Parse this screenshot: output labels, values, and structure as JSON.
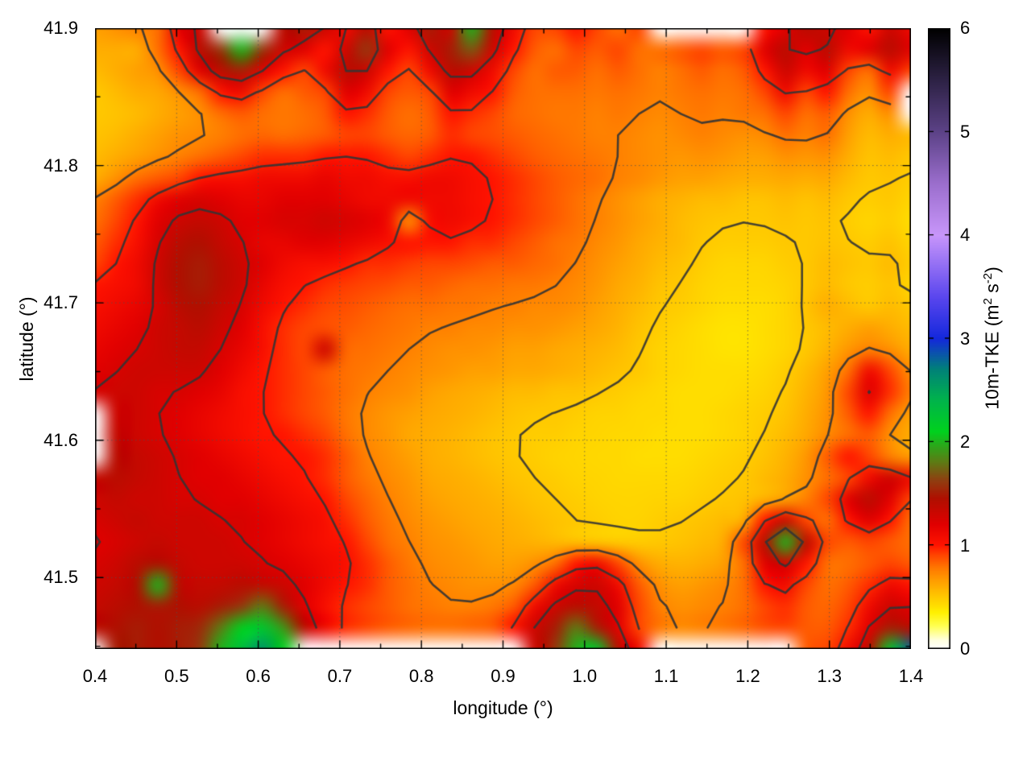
{
  "chart_data": {
    "type": "heatmap",
    "title": "",
    "xlabel": "longitude (°)",
    "ylabel": "latitude (°)",
    "colorbar_label": {
      "prefix": "10m-TKE (m",
      "sup1": "2",
      "mid": " s",
      "sup2": "-2",
      "suffix": ")"
    },
    "x_range": [
      0.4,
      1.4
    ],
    "y_range": [
      41.448,
      41.9
    ],
    "z_range": [
      0,
      6
    ],
    "x_tick_labels": [
      "0.4",
      "0.5",
      "0.6",
      "0.7",
      "0.8",
      "0.9",
      "1.0",
      "1.1",
      "1.2",
      "1.3",
      "1.4"
    ],
    "x_minor_ticks": [
      0.45,
      0.55,
      0.65,
      0.75,
      0.85,
      0.95,
      1.05,
      1.15,
      1.25,
      1.35
    ],
    "y_tick_labels": [
      "41.5",
      "41.6",
      "41.7",
      "41.8",
      "41.9"
    ],
    "y_minor_ticks": [
      41.45,
      41.55,
      41.65,
      41.75,
      41.85
    ],
    "x_grid": [
      0.5,
      0.6,
      0.7,
      0.8,
      0.9,
      1.0,
      1.1,
      1.2,
      1.3
    ],
    "y_grid": [
      41.5,
      41.6,
      41.7,
      41.8
    ],
    "cb_tick_labels": [
      "0",
      "1",
      "2",
      "3",
      "4",
      "5",
      "6"
    ],
    "grid": true,
    "legend_position": "colorbar-right",
    "contour_levels": [
      0.5,
      0.75,
      1.0,
      1.25
    ],
    "contour_color": "#343434",
    "palette": [
      [
        0.0,
        "#ffffff"
      ],
      [
        0.08,
        "#ffffe0"
      ],
      [
        0.22,
        "#ffff50"
      ],
      [
        0.35,
        "#fff000"
      ],
      [
        0.5,
        "#ffc800"
      ],
      [
        0.65,
        "#ffa000"
      ],
      [
        0.78,
        "#ff7800"
      ],
      [
        0.9,
        "#ff4600"
      ],
      [
        1.0,
        "#ff1400"
      ],
      [
        1.2,
        "#e10000"
      ],
      [
        1.45,
        "#b00f00"
      ],
      [
        1.62,
        "#913c10"
      ],
      [
        1.8,
        "#5f7a14"
      ],
      [
        1.95,
        "#2fa41a"
      ],
      [
        2.1,
        "#00d21e"
      ],
      [
        2.4,
        "#00b44b"
      ],
      [
        2.7,
        "#008278"
      ],
      [
        3.0,
        "#1428dc"
      ],
      [
        3.4,
        "#5a46ee"
      ],
      [
        4.0,
        "#c896fa"
      ],
      [
        4.5,
        "#9b6ecd"
      ],
      [
        5.0,
        "#5c4287"
      ],
      [
        5.5,
        "#2d2245"
      ],
      [
        6.0,
        "#000000"
      ]
    ],
    "values_note": "10m TKE (m2/s2); rows top(lat 41.9) to bottom(lat 41.448), cols lon 0.4 to 1.4; 0 = no data (white)",
    "values": [
      [
        0.65,
        0.7,
        0.75,
        0.8,
        1.2,
        1.3,
        0,
        0,
        0,
        1.4,
        1.5,
        1.3,
        1.1,
        1.4,
        1.0,
        1.2,
        1.5,
        1.3,
        2.0,
        1.4,
        1.1,
        0.9,
        0.9,
        1.0,
        0.9,
        0.8,
        0.9,
        0,
        0,
        0,
        0,
        0,
        1.0,
        1.2,
        1.4,
        1.3,
        1.2,
        1.0,
        1.3,
        1.1
      ],
      [
        0.6,
        0.6,
        0.6,
        0.8,
        1.0,
        1.4,
        1.6,
        2.0,
        1.6,
        1.3,
        1.2,
        1.0,
        1.3,
        1.6,
        1.2,
        1.0,
        1.3,
        1.5,
        1.7,
        1.3,
        1.0,
        0.85,
        0.8,
        0.9,
        0.85,
        0.9,
        0.8,
        0.8,
        0.85,
        0.9,
        0.85,
        0.9,
        1.2,
        1.4,
        1.2,
        1.4,
        1.1,
        1.2,
        1.4,
        1.2
      ],
      [
        0.55,
        0.6,
        0.65,
        0.7,
        0.9,
        1.2,
        1.4,
        1.5,
        1.2,
        1.0,
        0.9,
        1.1,
        1.4,
        1.3,
        1.0,
        0.9,
        1.1,
        1.4,
        1.3,
        1.1,
        0.9,
        0.8,
        0.85,
        0.85,
        0.8,
        0.85,
        0.8,
        0.75,
        0.8,
        0.85,
        0.8,
        0.85,
        1.0,
        1.3,
        1.1,
        1.2,
        0.9,
        0.8,
        1.1,
        0.9
      ],
      [
        0.5,
        0.55,
        0.6,
        0.62,
        0.7,
        0.8,
        1.0,
        1.1,
        0.9,
        0.8,
        0.85,
        0.9,
        1.2,
        1.1,
        0.9,
        0.85,
        0.9,
        1.2,
        1.1,
        1.0,
        0.85,
        0.8,
        0.8,
        0.8,
        0.78,
        0.8,
        0.78,
        0.75,
        0.78,
        0.8,
        0.78,
        0.8,
        0.9,
        1.1,
        0.9,
        1.0,
        0.8,
        0.7,
        0.9,
        0
      ],
      [
        0.5,
        0.52,
        0.55,
        0.6,
        0.65,
        0.7,
        0.8,
        0.85,
        0.8,
        0.78,
        0.8,
        0.85,
        1.0,
        0.95,
        0.85,
        0.8,
        0.85,
        1.0,
        0.95,
        0.9,
        0.82,
        0.8,
        0.78,
        0.78,
        0.75,
        0.78,
        0.75,
        0.72,
        0.75,
        0.78,
        0.75,
        0.78,
        0.8,
        0.9,
        0.8,
        0.85,
        0.7,
        0.6,
        0.7,
        0
      ],
      [
        0.52,
        0.55,
        0.6,
        0.65,
        0.7,
        0.72,
        0.75,
        0.8,
        0.82,
        0.8,
        0.82,
        0.85,
        0.9,
        0.9,
        0.85,
        0.82,
        0.85,
        0.95,
        0.9,
        0.88,
        0.85,
        0.82,
        0.8,
        0.78,
        0.75,
        0.75,
        0.72,
        0.7,
        0.72,
        0.75,
        0.72,
        0.7,
        0.72,
        0.8,
        0.75,
        0.8,
        0.65,
        0.55,
        0.6,
        0.55
      ],
      [
        0.55,
        0.6,
        0.65,
        0.7,
        0.75,
        0.8,
        0.85,
        0.9,
        0.95,
        0.95,
        0.95,
        1.0,
        1.0,
        1.0,
        0.95,
        0.9,
        0.95,
        1.0,
        1.0,
        0.95,
        0.9,
        0.85,
        0.82,
        0.8,
        0.78,
        0.75,
        0.72,
        0.7,
        0.68,
        0.7,
        0.68,
        0.65,
        0.65,
        0.7,
        0.68,
        0.7,
        0.6,
        0.52,
        0.55,
        0.5
      ],
      [
        0.6,
        0.7,
        0.8,
        0.85,
        0.9,
        1.0,
        1.05,
        1.05,
        1.1,
        1.1,
        1.1,
        1.15,
        1.1,
        1.1,
        1.05,
        1.05,
        1.1,
        1.1,
        1.05,
        1.0,
        0.95,
        0.9,
        0.85,
        0.82,
        0.8,
        0.75,
        0.72,
        0.68,
        0.65,
        0.65,
        0.62,
        0.6,
        0.6,
        0.62,
        0.6,
        0.62,
        0.55,
        0.5,
        0.52,
        0.48
      ],
      [
        0.75,
        0.85,
        0.95,
        1.1,
        1.2,
        1.25,
        1.2,
        1.15,
        1.15,
        1.2,
        1.2,
        1.2,
        1.15,
        1.1,
        1.1,
        1.1,
        1.1,
        1.1,
        1.05,
        1.0,
        0.95,
        0.9,
        0.85,
        0.8,
        0.75,
        0.7,
        0.65,
        0.6,
        0.58,
        0.55,
        0.55,
        0.52,
        0.52,
        0.55,
        0.52,
        0.55,
        0.5,
        0.48,
        0.5,
        0.45
      ],
      [
        0.8,
        0.9,
        1.0,
        1.2,
        1.3,
        1.35,
        1.3,
        1.2,
        1.2,
        1.25,
        1.25,
        1.3,
        1.25,
        1.2,
        1.1,
        0.7,
        1.05,
        1.1,
        1.05,
        1.0,
        0.95,
        0.9,
        0.85,
        0.8,
        0.75,
        0.7,
        0.65,
        0.6,
        0.55,
        0.52,
        0.5,
        0.5,
        0.5,
        0.52,
        0.5,
        0.52,
        0.48,
        0.45,
        0.48,
        0.42
      ],
      [
        0.85,
        0.95,
        1.05,
        1.25,
        1.4,
        1.45,
        1.35,
        1.25,
        1.15,
        1.15,
        1.2,
        1.2,
        1.15,
        1.1,
        1.05,
        1.0,
        1.0,
        1.0,
        0.95,
        0.95,
        0.9,
        0.85,
        0.8,
        0.78,
        0.72,
        0.68,
        0.62,
        0.58,
        0.55,
        0.5,
        0.48,
        0.48,
        0.48,
        0.5,
        0.5,
        0.52,
        0.5,
        0.48,
        0.52,
        0.45
      ],
      [
        0.9,
        1.0,
        1.1,
        1.3,
        1.45,
        1.5,
        1.4,
        1.3,
        1.2,
        1.1,
        1.05,
        1.05,
        1.0,
        0.95,
        0.95,
        0.92,
        0.9,
        0.9,
        0.88,
        0.85,
        0.85,
        0.82,
        0.8,
        0.75,
        0.7,
        0.65,
        0.6,
        0.55,
        0.52,
        0.48,
        0.45,
        0.45,
        0.45,
        0.48,
        0.5,
        0.55,
        0.52,
        0.5,
        0.55,
        0.48
      ],
      [
        1.0,
        1.05,
        1.1,
        1.3,
        1.45,
        1.5,
        1.4,
        1.3,
        1.15,
        1.05,
        1.0,
        0.95,
        0.92,
        0.9,
        0.88,
        0.85,
        0.85,
        0.82,
        0.8,
        0.8,
        0.78,
        0.78,
        0.75,
        0.72,
        0.68,
        0.62,
        0.58,
        0.52,
        0.5,
        0.46,
        0.44,
        0.44,
        0.44,
        0.46,
        0.5,
        0.55,
        0.5,
        0.48,
        0.52,
        0.45
      ],
      [
        1.05,
        1.1,
        1.15,
        1.25,
        1.4,
        1.45,
        1.35,
        1.25,
        1.1,
        1.0,
        0.95,
        0.9,
        0.88,
        0.85,
        0.82,
        0.8,
        0.8,
        0.78,
        0.78,
        0.75,
        0.75,
        0.72,
        0.72,
        0.7,
        0.65,
        0.6,
        0.55,
        0.5,
        0.48,
        0.45,
        0.42,
        0.42,
        0.42,
        0.45,
        0.52,
        0.6,
        0.55,
        0.5,
        0.55,
        0.5
      ],
      [
        1.1,
        1.15,
        1.2,
        1.3,
        1.35,
        1.4,
        1.3,
        1.2,
        1.05,
        0.95,
        0.9,
        0.88,
        0.85,
        0.82,
        0.8,
        0.78,
        0.75,
        0.75,
        0.72,
        0.72,
        0.7,
        0.7,
        0.68,
        0.65,
        0.62,
        0.58,
        0.52,
        0.48,
        0.45,
        0.42,
        0.4,
        0.4,
        0.42,
        0.45,
        0.5,
        0.55,
        0.6,
        0.65,
        0.6,
        0.55
      ],
      [
        1.15,
        1.2,
        1.25,
        1.3,
        1.35,
        1.35,
        1.25,
        1.15,
        1.05,
        0.95,
        0.9,
        1.3,
        0.82,
        0.8,
        0.78,
        0.75,
        0.72,
        0.7,
        0.7,
        0.68,
        0.65,
        0.65,
        0.62,
        0.6,
        0.58,
        0.55,
        0.5,
        0.46,
        0.44,
        0.42,
        0.4,
        0.4,
        0.42,
        0.45,
        0.5,
        0.58,
        0.68,
        0.75,
        0.7,
        0.6
      ],
      [
        1.2,
        1.25,
        1.3,
        1.3,
        1.3,
        1.3,
        1.2,
        1.1,
        1.0,
        0.95,
        0.9,
        0.85,
        0.8,
        0.78,
        0.75,
        0.72,
        0.7,
        0.68,
        0.65,
        0.65,
        0.62,
        0.62,
        0.6,
        0.58,
        0.55,
        0.52,
        0.5,
        0.46,
        0.44,
        0.42,
        0.42,
        0.42,
        0.44,
        0.48,
        0.55,
        0.65,
        0.8,
        1.1,
        0.9,
        0.7
      ],
      [
        1.25,
        1.3,
        1.3,
        1.25,
        1.25,
        1.2,
        1.15,
        1.05,
        1.0,
        0.95,
        0.9,
        0.85,
        0.8,
        0.75,
        0.72,
        0.7,
        0.65,
        0.62,
        0.6,
        0.58,
        0.55,
        0.55,
        0.52,
        0.52,
        0.5,
        0.48,
        0.46,
        0.44,
        0.42,
        0.42,
        0.42,
        0.44,
        0.46,
        0.5,
        0.58,
        0.68,
        0.9,
        1.2,
        0.95,
        0.75
      ],
      [
        0,
        1.3,
        1.3,
        1.25,
        1.2,
        1.15,
        1.1,
        1.05,
        1.0,
        0.95,
        0.9,
        0.85,
        0.78,
        0.72,
        0.68,
        0.65,
        0.62,
        0.6,
        0.58,
        0.55,
        0.52,
        0.5,
        0.5,
        0.48,
        0.46,
        0.46,
        0.44,
        0.44,
        0.42,
        0.42,
        0.44,
        0.46,
        0.48,
        0.52,
        0.6,
        0.7,
        0.85,
        1.0,
        0.8,
        0.65
      ],
      [
        0,
        1.35,
        1.3,
        1.25,
        1.2,
        1.15,
        1.1,
        1.05,
        1.0,
        1.0,
        0.95,
        0.9,
        0.8,
        0.72,
        0.68,
        0.62,
        0.6,
        0.58,
        0.55,
        0.52,
        0.5,
        0.48,
        0.48,
        0.46,
        0.45,
        0.44,
        0.44,
        0.42,
        0.42,
        0.42,
        0.44,
        0.46,
        0.5,
        0.55,
        0.62,
        0.72,
        0.8,
        0.85,
        0.7,
        0.6
      ],
      [
        0,
        1.4,
        1.35,
        1.3,
        1.25,
        1.2,
        1.15,
        1.1,
        1.05,
        1.0,
        1.0,
        0.95,
        0.85,
        0.75,
        0.7,
        0.65,
        0.6,
        0.58,
        0.55,
        0.52,
        0.5,
        0.48,
        0.46,
        0.45,
        0.44,
        0.44,
        0.42,
        0.42,
        0.42,
        0.44,
        0.46,
        0.48,
        0.52,
        0.58,
        0.68,
        0.85,
        1.0,
        0.9,
        0.75,
        0.65
      ],
      [
        1.35,
        1.4,
        1.35,
        1.3,
        1.25,
        1.2,
        1.2,
        1.15,
        1.1,
        1.05,
        1.0,
        0.95,
        0.85,
        0.78,
        0.72,
        0.68,
        0.62,
        0.6,
        0.58,
        0.55,
        0.52,
        0.5,
        0.48,
        0.46,
        0.45,
        0.44,
        0.44,
        0.44,
        0.44,
        0.46,
        0.48,
        0.5,
        0.55,
        0.6,
        0.7,
        0.8,
        0.9,
        1.1,
        1.3,
        1.1
      ],
      [
        1.3,
        1.35,
        1.3,
        1.3,
        1.25,
        1.25,
        1.2,
        1.2,
        1.15,
        1.1,
        1.05,
        1.0,
        0.9,
        0.82,
        0.75,
        0.7,
        0.65,
        0.62,
        0.6,
        0.58,
        0.55,
        0.52,
        0.5,
        0.48,
        0.46,
        0.45,
        0.45,
        0.46,
        0.46,
        0.48,
        0.5,
        0.52,
        0.58,
        0.65,
        0.75,
        0.9,
        1.2,
        1.4,
        1.2,
        0.9
      ],
      [
        1.25,
        1.3,
        1.35,
        1.3,
        1.3,
        1.3,
        1.25,
        1.25,
        1.2,
        1.15,
        1.1,
        1.05,
        0.95,
        0.85,
        0.78,
        0.72,
        0.68,
        0.65,
        0.62,
        0.6,
        0.58,
        0.55,
        0.52,
        0.5,
        0.48,
        0.46,
        0.46,
        0.48,
        0.5,
        0.52,
        0.55,
        0.6,
        1.0,
        1.3,
        0.9,
        0.8,
        1.0,
        1.2,
        1.0,
        0.8
      ],
      [
        1.2,
        1.25,
        1.3,
        1.35,
        1.3,
        1.3,
        1.3,
        1.25,
        1.2,
        1.15,
        1.1,
        1.05,
        1.0,
        0.9,
        0.8,
        0.75,
        0.7,
        0.68,
        0.65,
        0.62,
        0.6,
        0.58,
        0.55,
        0.52,
        0.5,
        0.48,
        0.48,
        0.5,
        0.52,
        0.55,
        0.6,
        0.9,
        1.4,
        2.0,
        1.4,
        0.9,
        0.85,
        0.9,
        0.85,
        0.8
      ],
      [
        1.25,
        1.3,
        1.4,
        1.45,
        1.35,
        1.3,
        1.3,
        1.3,
        1.25,
        1.2,
        1.15,
        1.1,
        1.05,
        0.95,
        0.85,
        0.78,
        0.72,
        0.7,
        0.68,
        0.65,
        0.65,
        0.7,
        0.8,
        1.0,
        1.1,
        0.9,
        0.7,
        0.6,
        0.58,
        0.6,
        0.65,
        0.8,
        1.2,
        1.3,
        1.0,
        0.8,
        0.8,
        0.85,
        0.9,
        0.85
      ],
      [
        1.3,
        1.35,
        1.45,
        2.0,
        1.4,
        1.35,
        1.35,
        1.4,
        1.35,
        1.3,
        1.2,
        1.1,
        1.0,
        0.95,
        0.85,
        0.8,
        0.75,
        0.72,
        0.7,
        0.7,
        0.72,
        0.85,
        1.1,
        1.25,
        1.3,
        1.1,
        0.85,
        0.7,
        0.65,
        0.68,
        0.72,
        0.8,
        1.0,
        1.1,
        0.9,
        0.8,
        0.85,
        0.95,
        1.1,
        1.0
      ],
      [
        1.35,
        1.4,
        1.45,
        1.5,
        1.45,
        1.4,
        1.5,
        1.6,
        1.8,
        1.5,
        1.2,
        1.05,
        0.95,
        0.9,
        0.85,
        0.8,
        0.78,
        0.75,
        0.75,
        0.78,
        0.85,
        1.1,
        1.3,
        1.4,
        1.35,
        1.2,
        0.9,
        0.75,
        0.7,
        0.72,
        0.75,
        0.8,
        0.9,
        0.95,
        0.85,
        0.82,
        0.9,
        1.1,
        1.3,
        1.2
      ],
      [
        1.4,
        1.45,
        1.5,
        1.45,
        1.5,
        1.55,
        1.8,
        2.1,
        2.2,
        1.9,
        1.4,
        1.1,
        0.95,
        0.9,
        0.85,
        0.82,
        0.8,
        0.8,
        0.82,
        0.85,
        1.0,
        1.3,
        1.5,
        1.8,
        1.5,
        1.2,
        0.9,
        0.78,
        0.72,
        0.75,
        0.78,
        0.82,
        0.88,
        0.9,
        0.85,
        0.85,
        0.95,
        1.2,
        1.5,
        1.4
      ],
      [
        0,
        1.5,
        1.5,
        1.45,
        1.5,
        1.6,
        2.0,
        2.3,
        2.6,
        2.1,
        0,
        0,
        0,
        0,
        0,
        0,
        0,
        0,
        0,
        0,
        0,
        1.3,
        1.6,
        2.0,
        2.2,
        1.4,
        1.1,
        0,
        0,
        0,
        0,
        0,
        0,
        0,
        0.85,
        0.9,
        1.1,
        1.4,
        2.2,
        2.8
      ]
    ]
  }
}
